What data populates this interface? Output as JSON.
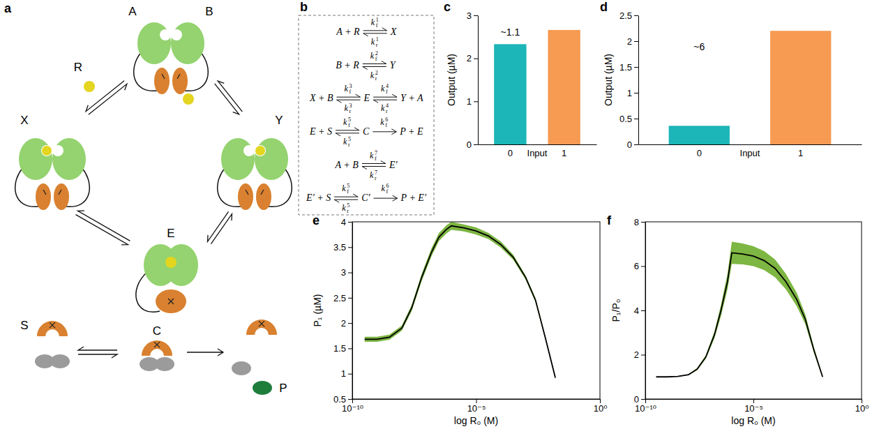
{
  "diagram": {
    "label": "a",
    "nodes": [
      "A",
      "B",
      "R",
      "X",
      "Y",
      "E",
      "S",
      "C",
      "P"
    ]
  },
  "equations": {
    "label": "b",
    "rows": [
      [
        "A + R",
        {
          "arrow": "reversible",
          "forward": {
            "k": "k",
            "sub": "f",
            "sup": "1"
          },
          "reverse": {
            "k": "k",
            "sub": "r",
            "sup": "1"
          }
        },
        "X"
      ],
      [
        "B + R",
        {
          "arrow": "reversible",
          "forward": {
            "k": "k",
            "sub": "f",
            "sup": "2"
          },
          "reverse": {
            "k": "k",
            "sub": "r",
            "sup": "2"
          }
        },
        "Y"
      ],
      [
        "X + B",
        {
          "arrow": "reversible",
          "forward": {
            "k": "k",
            "sub": "f",
            "sup": "3"
          },
          "reverse": {
            "k": "k",
            "sub": "r",
            "sup": "3"
          }
        },
        "E",
        {
          "arrow": "reversible",
          "forward": {
            "k": "k",
            "sub": "f",
            "sup": "4"
          },
          "reverse": {
            "k": "k",
            "sub": "r",
            "sup": "4"
          }
        },
        "Y + A"
      ],
      [
        "E + S",
        {
          "arrow": "reversible",
          "forward": {
            "k": "k",
            "sub": "f",
            "sup": "5"
          },
          "reverse": {
            "k": "k",
            "sub": "r",
            "sup": "5"
          }
        },
        "C",
        {
          "arrow": "forward",
          "forward": {
            "k": "k",
            "sub": "f",
            "sup": "6"
          }
        },
        "P + E"
      ],
      [
        "A + B",
        {
          "arrow": "reversible",
          "forward": {
            "k": "k",
            "sub": "f",
            "sup": "7"
          },
          "reverse": {
            "k": "k",
            "sub": "r",
            "sup": "7"
          }
        },
        "E′"
      ],
      [
        "E′ + S",
        {
          "arrow": "reversible",
          "forward": {
            "k": "k",
            "sub": "f",
            "sup": "5"
          },
          "reverse": {
            "k": "k",
            "sub": "r",
            "sup": "5"
          }
        },
        "C′",
        {
          "arrow": "forward",
          "forward": {
            "k": "k",
            "sub": "f",
            "sup": "6"
          }
        },
        "P + E′"
      ]
    ]
  },
  "chart_data": [
    {
      "panel": "c",
      "type": "bar",
      "categories": [
        "0",
        "1"
      ],
      "values": [
        2.33,
        2.66
      ],
      "colors": [
        "#1cb5b8",
        "#f79a52"
      ],
      "x_label": "Input",
      "y_label": "Output (µM)",
      "ylim": [
        0,
        3
      ],
      "yticks": [
        0,
        1,
        2,
        3
      ],
      "annotation": "~1.1"
    },
    {
      "panel": "d",
      "type": "bar",
      "categories": [
        "0",
        "1"
      ],
      "values": [
        0.36,
        2.2
      ],
      "colors": [
        "#1cb5b8",
        "#f79a52"
      ],
      "x_label": "Input",
      "y_label": "Output (µM)",
      "ylim": [
        0,
        2.5
      ],
      "yticks": [
        0,
        0.5,
        1,
        1.5,
        2,
        2.5
      ],
      "annotation": "~6"
    },
    {
      "panel": "e",
      "type": "line",
      "log": "x",
      "x": [
        3.16e-10,
        1e-09,
        3.16e-09,
        1e-08,
        2.51e-08,
        6.31e-08,
        1.58e-07,
        3.16e-07,
        6.31e-07,
        1e-06,
        3.16e-06,
        1e-05,
        3.16e-05,
        0.0001,
        0.000316,
        0.001,
        0.00251,
        0.00631,
        0.0158
      ],
      "series": [
        {
          "color": "#000000",
          "values": [
            1.68,
            1.68,
            1.72,
            1.9,
            2.3,
            2.9,
            3.4,
            3.7,
            3.85,
            3.92,
            3.88,
            3.82,
            3.72,
            3.55,
            3.3,
            2.9,
            2.45,
            1.7,
            0.92
          ],
          "lower": [
            1.63,
            1.63,
            1.67,
            1.85,
            2.24,
            2.83,
            3.32,
            3.62,
            3.77,
            3.84,
            3.81,
            3.75,
            3.66,
            3.49,
            3.25,
            2.86,
            2.41,
            1.67,
            0.89
          ],
          "upper": [
            1.73,
            1.73,
            1.77,
            1.95,
            2.36,
            2.97,
            3.48,
            3.78,
            3.93,
            4.0,
            3.95,
            3.89,
            3.78,
            3.61,
            3.35,
            2.94,
            2.49,
            1.73,
            0.95
          ]
        }
      ],
      "x_label": "log R₀ (M)",
      "y_label": "P₁ (µM)",
      "xlim": [
        1e-10,
        1
      ],
      "xticks": [
        {
          "value": 1e-10,
          "label": "10⁻¹⁰"
        },
        {
          "value": 1e-05,
          "label": "10⁻⁵"
        },
        {
          "value": 1,
          "label": "10⁰"
        }
      ],
      "ylim": [
        0.5,
        4
      ],
      "yticks": [
        0.5,
        1,
        1.5,
        2,
        2.5,
        3,
        3.5,
        4
      ]
    },
    {
      "panel": "f",
      "type": "line",
      "log": "x",
      "x": [
        3.16e-10,
        1e-09,
        3.16e-09,
        1e-08,
        2.51e-08,
        6.31e-08,
        1.58e-07,
        3.16e-07,
        6.31e-07,
        1e-06,
        3.16e-06,
        1e-05,
        3.16e-05,
        0.0001,
        0.000316,
        0.001,
        0.00251,
        0.00631,
        0.0158
      ],
      "series": [
        {
          "color": "#000000",
          "values": [
            1.0,
            1.0,
            1.02,
            1.1,
            1.35,
            1.9,
            2.9,
            4.0,
            5.3,
            6.6,
            6.55,
            6.45,
            6.25,
            5.9,
            5.3,
            4.5,
            3.6,
            2.2,
            1.0
          ],
          "lower": [
            1.0,
            1.0,
            1.01,
            1.08,
            1.3,
            1.82,
            2.75,
            3.75,
            4.95,
            6.1,
            6.08,
            6.0,
            5.82,
            5.5,
            4.95,
            4.2,
            3.38,
            2.08,
            0.95
          ],
          "upper": [
            1.0,
            1.0,
            1.03,
            1.12,
            1.4,
            1.98,
            3.05,
            4.25,
            5.65,
            7.1,
            7.02,
            6.9,
            6.68,
            6.3,
            5.65,
            4.8,
            3.82,
            2.32,
            1.05
          ]
        }
      ],
      "x_label": "log R₀ (M)",
      "y_label": "P₁/P₀",
      "xlim": [
        1e-10,
        1
      ],
      "xticks": [
        {
          "value": 1e-10,
          "label": "10⁻¹⁰"
        },
        {
          "value": 1e-05,
          "label": "10⁻⁵"
        },
        {
          "value": 1,
          "label": "10⁰"
        }
      ],
      "ylim": [
        0,
        8
      ],
      "yticks": [
        0,
        2,
        4,
        6,
        8
      ]
    }
  ]
}
